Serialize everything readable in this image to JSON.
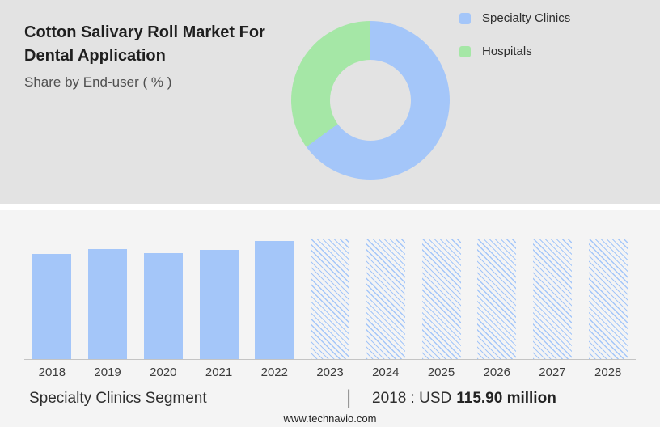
{
  "colors": {
    "top_bg": "#e3e3e3",
    "bottom_bg": "#f4f4f4",
    "blue": "#a4c6f9",
    "green": "#a5e7a6"
  },
  "header": {
    "title_line1": "Cotton Salivary Roll Market For",
    "title_line2": "Dental Application",
    "subtitle": "Share by End-user ( % )"
  },
  "legend": [
    {
      "label": "Specialty Clinics",
      "color": "#a4c6f9"
    },
    {
      "label": "Hospitals",
      "color": "#a5e7a6"
    }
  ],
  "chart_data": [
    {
      "type": "pie",
      "title": "Share by End-user ( % )",
      "labels": [
        "Specialty Clinics",
        "Hospitals"
      ],
      "values": [
        65,
        35
      ],
      "colors": [
        "#a4c6f9",
        "#a5e7a6"
      ],
      "donut": true,
      "start_angle_deg": 0,
      "legend_position": "right"
    },
    {
      "type": "bar",
      "categories": [
        "2018",
        "2019",
        "2020",
        "2021",
        "2022",
        "2023",
        "2024",
        "2025",
        "2026",
        "2027",
        "2028"
      ],
      "values": [
        115.9,
        121,
        117,
        120,
        130,
        132,
        132,
        132,
        132,
        132,
        132
      ],
      "unit": "USD million",
      "known_value_label": "2018 : USD 115.90 million",
      "forecast_from": "2023",
      "forecast_style": "hatched",
      "bar_color": "#a4c6f9",
      "ylim": [
        0,
        132
      ],
      "xlabel": "",
      "ylabel": "",
      "grid": "top-and-baseline-only"
    }
  ],
  "footer": {
    "segment_label": "Specialty Clinics Segment",
    "divider": "|",
    "value_prefix": "2018 : USD",
    "value_bold": "115.90 million",
    "website": "www.technavio.com"
  }
}
